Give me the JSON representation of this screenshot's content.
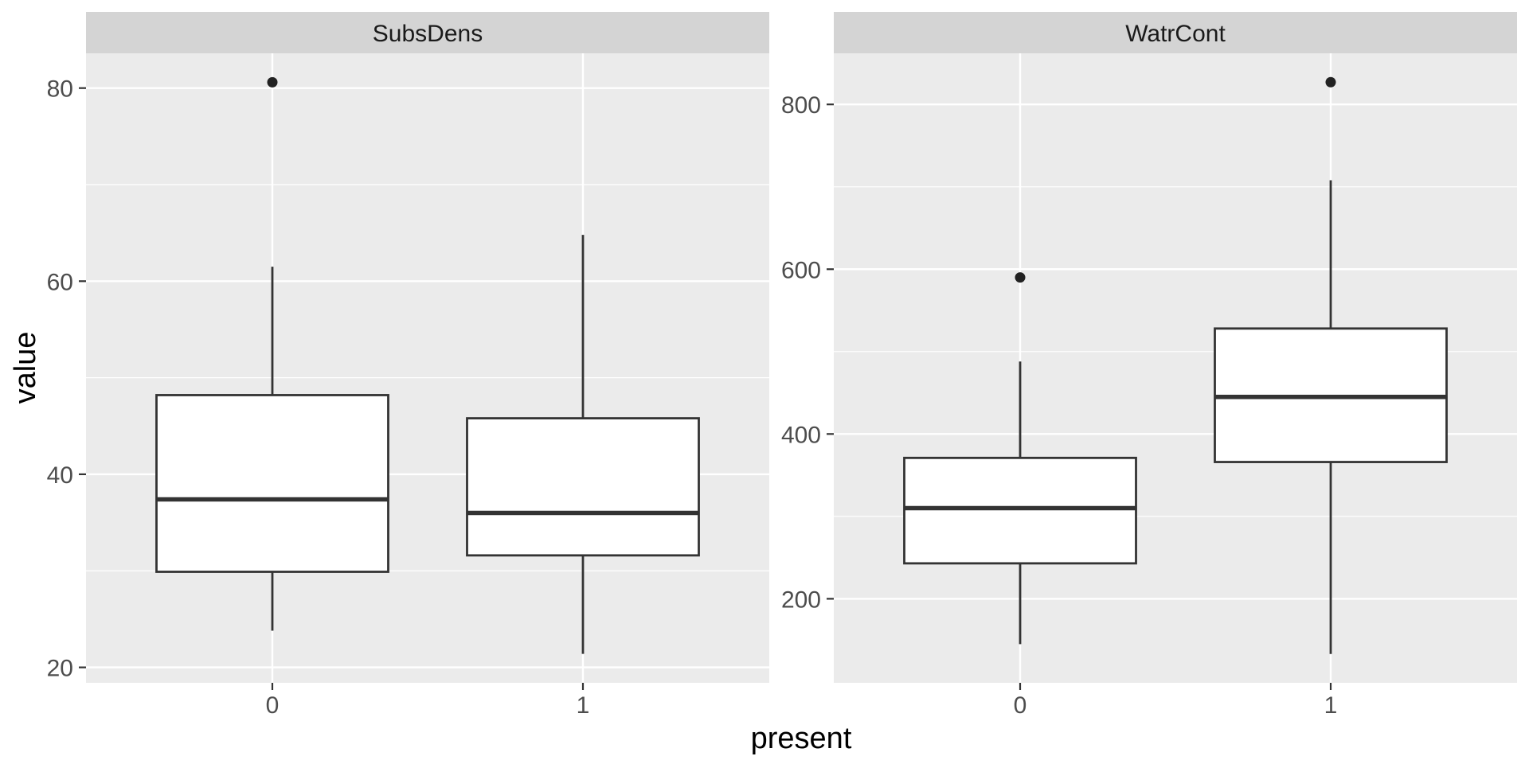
{
  "colors": {
    "figure_background": "#ffffff",
    "panel_background": "#ebebeb",
    "strip_background": "#d4d4d4",
    "strip_text": "#1a1a1a",
    "gridline": "#ffffff",
    "tick_mark": "#333333",
    "tick_label": "#4d4d4d",
    "axis_title": "#000000",
    "box_stroke": "#333333",
    "box_fill": "#ffffff",
    "outlier": "#222222"
  },
  "chart_data": {
    "type": "boxplot",
    "xlabel": "present",
    "ylabel": "value",
    "legend": "none",
    "grid": "on",
    "categories": [
      "0",
      "1"
    ],
    "facets": [
      {
        "title": "SubsDens",
        "ylim": [
          18.4,
          83.6
        ],
        "yticks": [
          {
            "value": 20,
            "label": "20"
          },
          {
            "value": 40,
            "label": "40"
          },
          {
            "value": 60,
            "label": "60"
          },
          {
            "value": 80,
            "label": "80"
          }
        ],
        "yminor": [
          30,
          50,
          70
        ],
        "boxes": [
          {
            "category": "0",
            "whisker_low": 23.8,
            "q1": 29.9,
            "median": 37.4,
            "q3": 48.2,
            "whisker_high": 61.5,
            "outliers": [
              80.6
            ]
          },
          {
            "category": "1",
            "whisker_low": 21.4,
            "q1": 31.6,
            "median": 36.0,
            "q3": 45.8,
            "whisker_high": 64.8,
            "outliers": []
          }
        ]
      },
      {
        "title": "WatrCont",
        "ylim": [
          98,
          862
        ],
        "yticks": [
          {
            "value": 200,
            "label": "200"
          },
          {
            "value": 400,
            "label": "400"
          },
          {
            "value": 600,
            "label": "600"
          },
          {
            "value": 800,
            "label": "800"
          }
        ],
        "yminor": [
          300,
          500,
          700
        ],
        "boxes": [
          {
            "category": "0",
            "whisker_low": 145,
            "q1": 243,
            "median": 310,
            "q3": 371,
            "whisker_high": 488,
            "outliers": [
              590
            ]
          },
          {
            "category": "1",
            "whisker_low": 133,
            "q1": 366,
            "median": 445,
            "q3": 528,
            "whisker_high": 708,
            "outliers": [
              827
            ]
          }
        ]
      }
    ]
  }
}
